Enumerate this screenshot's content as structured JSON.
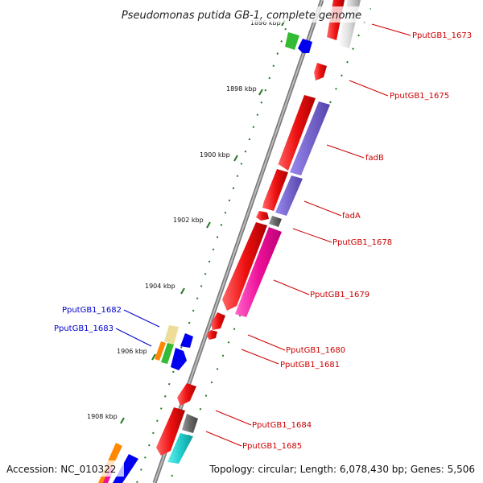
{
  "title": "Pseudomonas putida GB-1, complete genome",
  "accession": "Accession: NC_010322",
  "topology": "Topology: circular; Length: 6,078,430 bp; Genes: 5,506",
  "ticks": [
    "1896 kbp",
    "1898 kbp",
    "1900 kbp",
    "1902 kbp",
    "1904 kbp",
    "1906 kbp",
    "1908 kbp"
  ],
  "labels_right": [
    "PputGB1_1673",
    "PputGB1_1675",
    "fadB",
    "fadA",
    "PputGB1_1678",
    "PputGB1_1679",
    "PputGB1_1680",
    "PputGB1_1681",
    "PputGB1_1684",
    "PputGB1_1685"
  ],
  "labels_left": [
    "PputGB1_1682",
    "PputGB1_1683"
  ],
  "colors": {
    "forward_gene": "#ee1111",
    "cds_feature": "#7766cc",
    "pink_feature": "#ee1199",
    "gray_feature": "#666666",
    "teal_feature": "#22cccc",
    "label_right": "#cc0000",
    "label_left": "#0000cc",
    "backbone": "#888888",
    "tick": "#227722"
  }
}
